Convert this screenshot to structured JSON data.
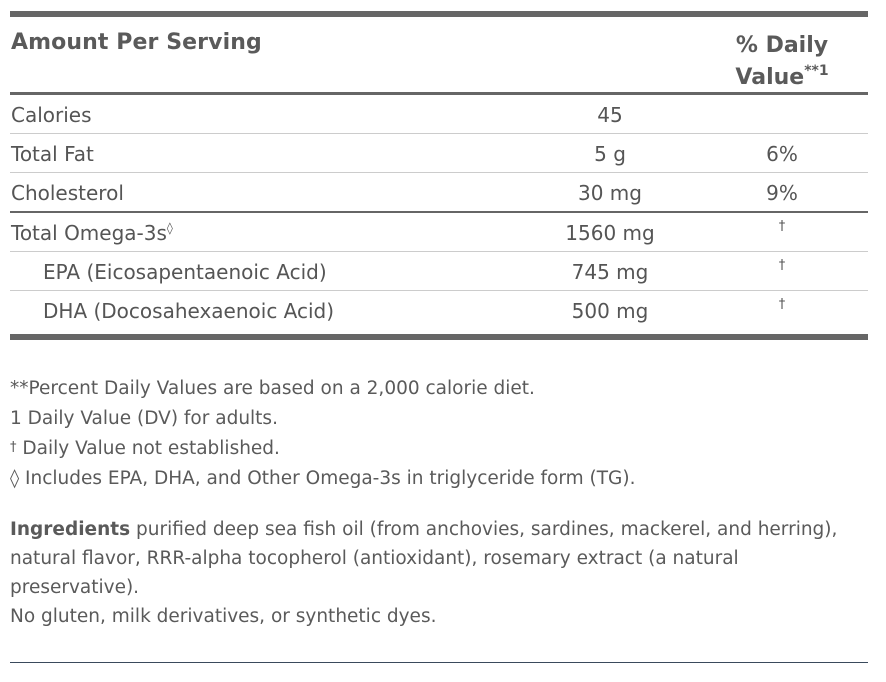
{
  "header": {
    "amount_label": "Amount Per Serving",
    "dv_label_line1": "% Daily",
    "dv_label_line2": "Value",
    "dv_label_sup": "**1"
  },
  "rows": [
    {
      "name": "Calories",
      "amount": "45",
      "dv": ""
    },
    {
      "name": "Total Fat",
      "amount": "5 g",
      "dv": "6%"
    },
    {
      "name": "Cholesterol",
      "amount": "30 mg",
      "dv": "9%"
    },
    {
      "name": "Total Omega-3s",
      "name_sup": "◊",
      "amount": "1560 mg",
      "dv": "†"
    },
    {
      "name": "EPA (Eicosapentaenoic Acid)",
      "amount": "745 mg",
      "dv": "†"
    },
    {
      "name": "DHA (Docosahexaenoic Acid)",
      "amount": "500 mg",
      "dv": "†"
    }
  ],
  "footnotes": {
    "percent_dv": "**Percent Daily Values are based on a 2,000 calorie diet.",
    "dv_adults": "1 Daily Value (DV) for adults.",
    "dagger_mark": "†",
    "dagger_text": " Daily Value not established.",
    "omega_note": "◊ Includes EPA, DHA, and Other Omega-3s in triglyceride form (TG)."
  },
  "ingredients": {
    "label": "Ingredients",
    "text": " purified deep sea fish oil (from anchovies, sardines, mackerel, and herring), natural flavor, RRR-alpha tocopherol (antioxidant), rosemary extract (a natural preservative).",
    "free_from": "No gluten, milk derivatives, or synthetic dyes."
  }
}
